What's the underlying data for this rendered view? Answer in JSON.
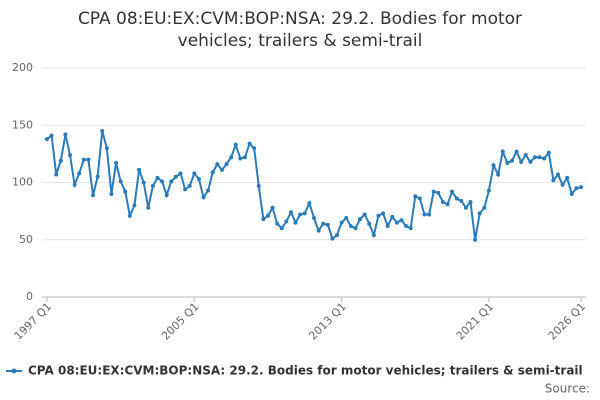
{
  "chart_data": {
    "type": "line",
    "title": "CPA 08:EU:EX:CVM:BOP:NSA: 29.2. Bodies for motor vehicles; trailers & semi-trail",
    "source": "Source:",
    "categories": [
      "1997 Q1",
      null,
      null,
      null,
      null,
      null,
      null,
      null,
      null,
      null,
      null,
      null,
      null,
      null,
      null,
      null,
      null,
      null,
      null,
      null,
      null,
      null,
      null,
      null,
      null,
      null,
      null,
      null,
      null,
      null,
      null,
      null,
      "2005 Q1",
      null,
      null,
      null,
      null,
      null,
      null,
      null,
      null,
      null,
      null,
      null,
      null,
      null,
      null,
      null,
      null,
      null,
      null,
      null,
      null,
      null,
      null,
      null,
      null,
      null,
      null,
      null,
      null,
      null,
      null,
      null,
      "2013 Q1",
      null,
      null,
      null,
      null,
      null,
      null,
      null,
      null,
      null,
      null,
      null,
      null,
      null,
      null,
      null,
      null,
      null,
      null,
      null,
      null,
      null,
      null,
      null,
      null,
      null,
      null,
      null,
      null,
      null,
      null,
      null,
      "2021 Q1",
      null,
      null,
      null,
      null,
      null,
      null,
      null,
      null,
      null,
      null,
      null,
      null,
      null,
      null,
      null,
      null,
      null,
      null,
      null,
      "2026 Q1"
    ],
    "series": [
      {
        "name": "CPA 08:EU:EX:CVM:BOP:NSA: 29.2. Bodies for motor vehicles; trailers & semi-trail",
        "color": "#2b7bb9",
        "values": [
          138,
          141,
          107,
          119,
          142,
          124,
          98,
          108,
          120,
          120,
          89,
          105,
          145,
          130,
          90,
          117,
          101,
          92,
          71,
          80,
          111,
          100,
          78,
          97,
          104,
          101,
          89,
          101,
          105,
          108,
          94,
          97,
          108,
          103,
          87,
          93,
          109,
          116,
          111,
          116,
          122,
          133,
          121,
          122,
          134,
          130,
          97,
          68,
          71,
          78,
          64,
          60,
          66,
          74,
          65,
          72,
          73,
          82,
          69,
          58,
          64,
          63,
          51,
          54,
          65,
          69,
          62,
          60,
          68,
          72,
          64,
          54,
          71,
          73,
          62,
          70,
          65,
          67,
          62,
          60,
          88,
          86,
          72,
          72,
          92,
          91,
          83,
          81,
          92,
          86,
          84,
          78,
          83,
          50,
          73,
          78,
          93,
          115,
          107,
          127,
          117,
          119,
          127,
          118,
          124,
          118,
          122,
          122,
          121,
          126,
          102,
          107,
          98,
          104,
          90,
          95,
          96
        ]
      }
    ],
    "ylim": [
      0,
      200
    ],
    "yticks": [
      0,
      50,
      100,
      150,
      200
    ],
    "grid": true
  }
}
